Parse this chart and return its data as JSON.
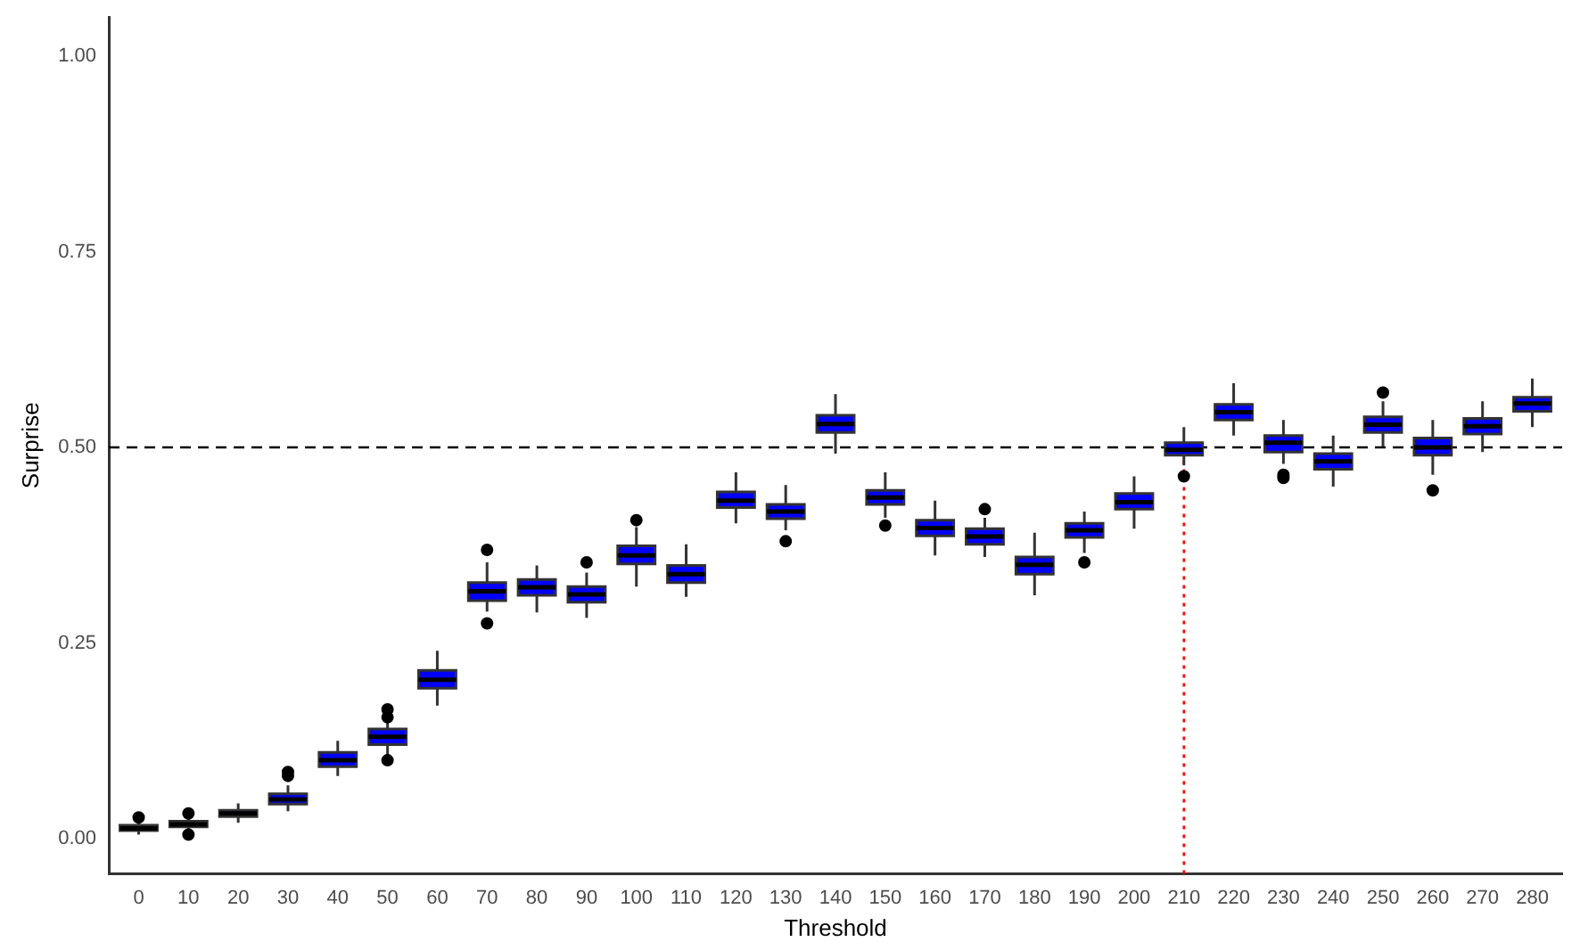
{
  "chart_data": {
    "type": "box",
    "xlabel": "Threshold",
    "ylabel": "Surprise",
    "categories": [
      "0",
      "10",
      "20",
      "30",
      "40",
      "50",
      "60",
      "70",
      "80",
      "90",
      "100",
      "110",
      "120",
      "130",
      "140",
      "150",
      "160",
      "170",
      "180",
      "190",
      "200",
      "210",
      "220",
      "230",
      "240",
      "250",
      "260",
      "270",
      "280"
    ],
    "series": [
      {
        "color": "#0000ff",
        "boxes": [
          {
            "low": 0.005,
            "q1": 0.01,
            "median": 0.013,
            "q3": 0.017,
            "high": 0.021,
            "outliers": [
              0.027
            ]
          },
          {
            "low": 0.01,
            "q1": 0.015,
            "median": 0.018,
            "q3": 0.022,
            "high": 0.026,
            "outliers": [
              0.032,
              0.005
            ]
          },
          {
            "low": 0.02,
            "q1": 0.028,
            "median": 0.032,
            "q3": 0.036,
            "high": 0.045
          },
          {
            "low": 0.035,
            "q1": 0.044,
            "median": 0.05,
            "q3": 0.057,
            "high": 0.068,
            "outliers": [
              0.08,
              0.085
            ]
          },
          {
            "low": 0.08,
            "q1": 0.092,
            "median": 0.1,
            "q3": 0.11,
            "high": 0.125
          },
          {
            "low": 0.105,
            "q1": 0.12,
            "median": 0.13,
            "q3": 0.14,
            "high": 0.15,
            "outliers": [
              0.1,
              0.155,
              0.165
            ]
          },
          {
            "low": 0.17,
            "q1": 0.192,
            "median": 0.203,
            "q3": 0.215,
            "high": 0.24
          },
          {
            "low": 0.29,
            "q1": 0.304,
            "median": 0.316,
            "q3": 0.327,
            "high": 0.353,
            "outliers": [
              0.369,
              0.275
            ]
          },
          {
            "low": 0.289,
            "q1": 0.311,
            "median": 0.321,
            "q3": 0.331,
            "high": 0.349
          },
          {
            "low": 0.282,
            "q1": 0.302,
            "median": 0.312,
            "q3": 0.322,
            "high": 0.34,
            "outliers": [
              0.353
            ]
          },
          {
            "low": 0.322,
            "q1": 0.351,
            "median": 0.362,
            "q3": 0.374,
            "high": 0.398,
            "outliers": [
              0.407
            ]
          },
          {
            "low": 0.309,
            "q1": 0.327,
            "median": 0.338,
            "q3": 0.349,
            "high": 0.376
          },
          {
            "low": 0.403,
            "q1": 0.423,
            "median": 0.432,
            "q3": 0.443,
            "high": 0.468
          },
          {
            "low": 0.394,
            "q1": 0.409,
            "median": 0.418,
            "q3": 0.427,
            "high": 0.452,
            "outliers": [
              0.38
            ]
          },
          {
            "low": 0.492,
            "q1": 0.519,
            "median": 0.53,
            "q3": 0.541,
            "high": 0.568
          },
          {
            "low": 0.41,
            "q1": 0.427,
            "median": 0.436,
            "q3": 0.445,
            "high": 0.468,
            "outliers": [
              0.4
            ]
          },
          {
            "low": 0.362,
            "q1": 0.387,
            "median": 0.397,
            "q3": 0.407,
            "high": 0.432
          },
          {
            "low": 0.36,
            "q1": 0.376,
            "median": 0.386,
            "q3": 0.396,
            "high": 0.41,
            "outliers": [
              0.421
            ]
          },
          {
            "low": 0.311,
            "q1": 0.338,
            "median": 0.35,
            "q3": 0.36,
            "high": 0.391
          },
          {
            "low": 0.365,
            "q1": 0.385,
            "median": 0.394,
            "q3": 0.403,
            "high": 0.418,
            "outliers": [
              0.353
            ]
          },
          {
            "low": 0.396,
            "q1": 0.421,
            "median": 0.43,
            "q3": 0.441,
            "high": 0.463
          },
          {
            "low": 0.477,
            "q1": 0.49,
            "median": 0.497,
            "q3": 0.506,
            "high": 0.526,
            "outliers": [
              0.463
            ]
          },
          {
            "low": 0.515,
            "q1": 0.535,
            "median": 0.545,
            "q3": 0.555,
            "high": 0.582
          },
          {
            "low": 0.479,
            "q1": 0.494,
            "median": 0.506,
            "q3": 0.515,
            "high": 0.535,
            "outliers": [
              0.465,
              0.461
            ]
          },
          {
            "low": 0.45,
            "q1": 0.472,
            "median": 0.482,
            "q3": 0.492,
            "high": 0.515
          },
          {
            "low": 0.501,
            "q1": 0.519,
            "median": 0.529,
            "q3": 0.539,
            "high": 0.559,
            "outliers": [
              0.57
            ]
          },
          {
            "low": 0.465,
            "q1": 0.49,
            "median": 0.5,
            "q3": 0.512,
            "high": 0.535,
            "outliers": [
              0.445
            ]
          },
          {
            "low": 0.494,
            "q1": 0.517,
            "median": 0.527,
            "q3": 0.537,
            "high": 0.559
          },
          {
            "low": 0.526,
            "q1": 0.546,
            "median": 0.556,
            "q3": 0.564,
            "high": 0.588
          }
        ]
      }
    ],
    "ylim": [
      -0.045,
      1.05
    ],
    "yticks": [
      {
        "value": 0,
        "label": "0.00"
      },
      {
        "value": 0.25,
        "label": "0.25"
      },
      {
        "value": 0.5,
        "label": "0.50"
      },
      {
        "value": 0.75,
        "label": "0.75"
      },
      {
        "value": 1,
        "label": "1.00"
      }
    ],
    "grid": false,
    "legend": false,
    "ref_lines": [
      {
        "axis": "y",
        "value": 0.5,
        "color": "#000000",
        "line_style": "dashed"
      },
      {
        "axis": "x",
        "value": "210",
        "color": "#ff0000",
        "line_style": "dotted"
      }
    ]
  }
}
